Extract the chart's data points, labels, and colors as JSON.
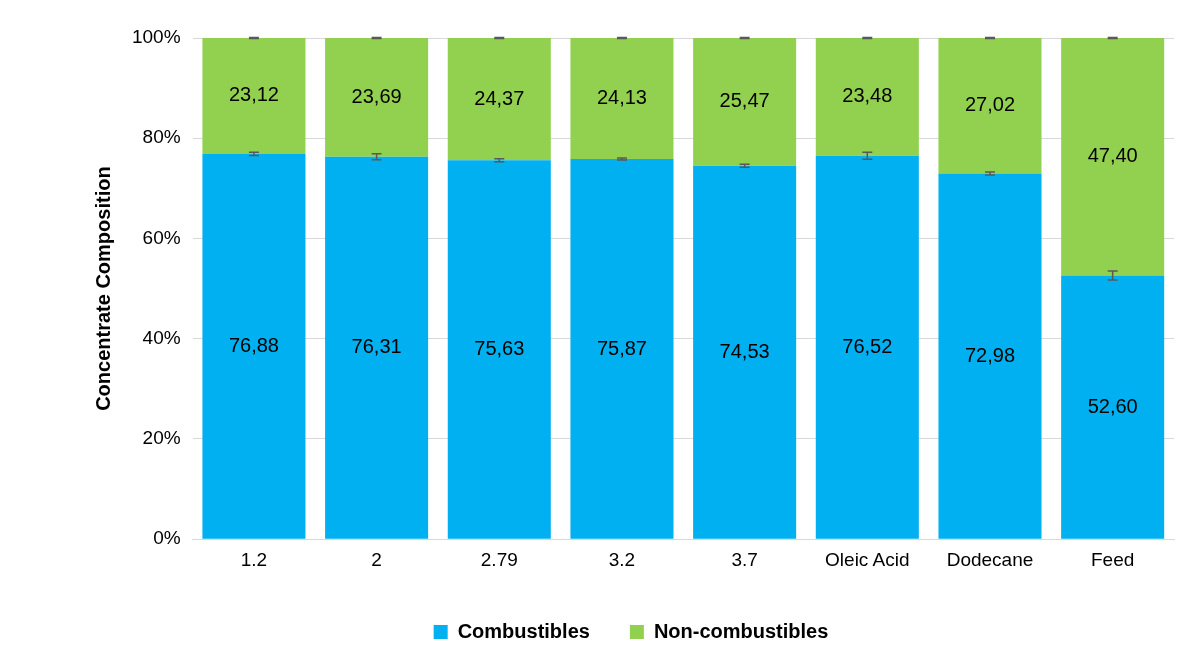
{
  "chart_data": {
    "type": "bar",
    "stacked": true,
    "ylabel": "Concentrate Composition",
    "categories": [
      "1.2",
      "2",
      "2.79",
      "3.2",
      "3.7",
      "Oleic Acid",
      "Dodecane",
      "Feed"
    ],
    "series": [
      {
        "name": "Combustibles",
        "color": "#00b0f0",
        "values": [
          76.88,
          76.31,
          75.63,
          75.87,
          74.53,
          76.52,
          72.98,
          52.6
        ],
        "value_labels": [
          "76,88",
          "76,31",
          "75,63",
          "75,87",
          "74,53",
          "76,52",
          "72,98",
          "52,60"
        ],
        "errors": [
          0.3,
          0.6,
          0.3,
          0.2,
          0.3,
          0.7,
          0.3,
          0.9
        ]
      },
      {
        "name": "Non-combustibles",
        "color": "#92d050",
        "values": [
          23.12,
          23.69,
          24.37,
          24.13,
          25.47,
          23.48,
          27.02,
          47.4
        ],
        "value_labels": [
          "23,12",
          "23,69",
          "24,37",
          "24,13",
          "25,47",
          "23,48",
          "27,02",
          "47,40"
        ],
        "errors": [
          0.1,
          0.1,
          0.1,
          0.1,
          0.1,
          0.1,
          0.1,
          0.1
        ]
      }
    ],
    "ylim": [
      0,
      100
    ],
    "yticks": [
      {
        "value": 0,
        "label": "0%"
      },
      {
        "value": 20,
        "label": "20%"
      },
      {
        "value": 40,
        "label": "40%"
      },
      {
        "value": 60,
        "label": "60%"
      },
      {
        "value": 80,
        "label": "80%"
      },
      {
        "value": 100,
        "label": "100%"
      }
    ],
    "grid": "y",
    "legend": "bottom"
  }
}
